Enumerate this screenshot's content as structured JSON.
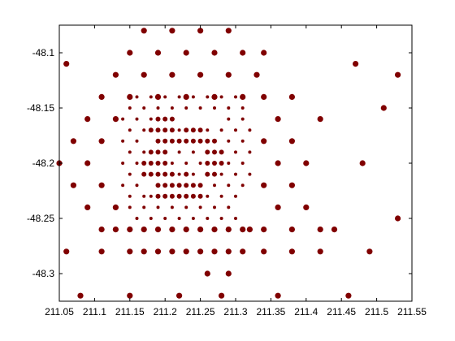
{
  "chart_data": {
    "type": "scatter",
    "title": "",
    "xlabel": "",
    "ylabel": "",
    "xlim": [
      211.05,
      211.55
    ],
    "ylim": [
      -48.325,
      -48.075
    ],
    "xticks": [
      211.05,
      211.1,
      211.15,
      211.2,
      211.25,
      211.3,
      211.35,
      211.4,
      211.45,
      211.5,
      211.55
    ],
    "xtick_labels": [
      "211.05",
      "211.1",
      "211.15",
      "211.2",
      "211.25",
      "211.3",
      "211.35",
      "211.4",
      "211.45",
      "211.5",
      "211.55"
    ],
    "yticks": [
      -48.1,
      -48.15,
      -48.2,
      -48.25,
      -48.3
    ],
    "ytick_labels": [
      "-48.1",
      "-48.15",
      "-48.2",
      "-48.25",
      "-48.3"
    ],
    "grid": false,
    "legend": "none",
    "marker_color": "#800000",
    "series": [
      {
        "points": [
          [
            211.17,
            -48.08
          ],
          [
            211.21,
            -48.08
          ],
          [
            211.25,
            -48.08
          ],
          [
            211.29,
            -48.08
          ],
          [
            211.06,
            -48.11
          ],
          [
            211.15,
            -48.1
          ],
          [
            211.19,
            -48.1
          ],
          [
            211.23,
            -48.1
          ],
          [
            211.27,
            -48.1
          ],
          [
            211.31,
            -48.1
          ],
          [
            211.34,
            -48.1
          ],
          [
            211.47,
            -48.11
          ],
          [
            211.13,
            -48.12
          ],
          [
            211.17,
            -48.12
          ],
          [
            211.21,
            -48.12
          ],
          [
            211.25,
            -48.12
          ],
          [
            211.29,
            -48.12
          ],
          [
            211.33,
            -48.12
          ],
          [
            211.53,
            -48.12
          ],
          [
            211.11,
            -48.14
          ],
          [
            211.15,
            -48.14
          ],
          [
            211.19,
            -48.14
          ],
          [
            211.23,
            -48.14
          ],
          [
            211.27,
            -48.14
          ],
          [
            211.31,
            -48.14
          ],
          [
            211.34,
            -48.14
          ],
          [
            211.38,
            -48.14
          ],
          [
            211.51,
            -48.15
          ],
          [
            211.09,
            -48.16
          ],
          [
            211.13,
            -48.16
          ],
          [
            211.36,
            -48.16
          ],
          [
            211.42,
            -48.16
          ],
          [
            211.07,
            -48.18
          ],
          [
            211.11,
            -48.18
          ],
          [
            211.34,
            -48.18
          ],
          [
            211.38,
            -48.18
          ],
          [
            211.05,
            -48.2
          ],
          [
            211.09,
            -48.2
          ],
          [
            211.36,
            -48.2
          ],
          [
            211.4,
            -48.2
          ],
          [
            211.48,
            -48.2
          ],
          [
            211.07,
            -48.22
          ],
          [
            211.11,
            -48.22
          ],
          [
            211.34,
            -48.22
          ],
          [
            211.38,
            -48.22
          ],
          [
            211.09,
            -48.24
          ],
          [
            211.13,
            -48.24
          ],
          [
            211.36,
            -48.24
          ],
          [
            211.4,
            -48.24
          ],
          [
            211.13,
            -48.26
          ],
          [
            211.17,
            -48.26
          ],
          [
            211.21,
            -48.26
          ],
          [
            211.25,
            -48.26
          ],
          [
            211.29,
            -48.26
          ],
          [
            211.32,
            -48.26
          ],
          [
            211.38,
            -48.26
          ],
          [
            211.44,
            -48.26
          ],
          [
            211.53,
            -48.25
          ],
          [
            211.11,
            -48.26
          ],
          [
            211.15,
            -48.26
          ],
          [
            211.19,
            -48.26
          ],
          [
            211.23,
            -48.26
          ],
          [
            211.27,
            -48.26
          ],
          [
            211.31,
            -48.26
          ],
          [
            211.34,
            -48.26
          ],
          [
            211.42,
            -48.26
          ],
          [
            211.06,
            -48.28
          ],
          [
            211.11,
            -48.28
          ],
          [
            211.15,
            -48.28
          ],
          [
            211.19,
            -48.28
          ],
          [
            211.23,
            -48.28
          ],
          [
            211.27,
            -48.28
          ],
          [
            211.31,
            -48.28
          ],
          [
            211.34,
            -48.28
          ],
          [
            211.38,
            -48.28
          ],
          [
            211.42,
            -48.28
          ],
          [
            211.49,
            -48.28
          ],
          [
            211.17,
            -48.28
          ],
          [
            211.21,
            -48.28
          ],
          [
            211.25,
            -48.28
          ],
          [
            211.29,
            -48.28
          ],
          [
            211.26,
            -48.3
          ],
          [
            211.29,
            -48.3
          ],
          [
            211.08,
            -48.32
          ],
          [
            211.15,
            -48.32
          ],
          [
            211.22,
            -48.32
          ],
          [
            211.28,
            -48.32
          ],
          [
            211.36,
            -48.32
          ],
          [
            211.46,
            -48.32
          ]
        ]
      },
      {
        "points": [
          [
            211.15,
            -48.15
          ],
          [
            211.16,
            -48.14
          ],
          [
            211.17,
            -48.15
          ],
          [
            211.18,
            -48.14
          ],
          [
            211.19,
            -48.15
          ],
          [
            211.2,
            -48.14
          ],
          [
            211.21,
            -48.15
          ],
          [
            211.22,
            -48.14
          ],
          [
            211.23,
            -48.15
          ],
          [
            211.24,
            -48.14
          ],
          [
            211.25,
            -48.15
          ],
          [
            211.26,
            -48.14
          ],
          [
            211.27,
            -48.15
          ],
          [
            211.28,
            -48.14
          ],
          [
            211.29,
            -48.15
          ],
          [
            211.3,
            -48.14
          ],
          [
            211.31,
            -48.15
          ],
          [
            211.14,
            -48.16
          ],
          [
            211.15,
            -48.17
          ],
          [
            211.16,
            -48.16
          ],
          [
            211.17,
            -48.17
          ],
          [
            211.18,
            -48.16
          ],
          [
            211.29,
            -48.16
          ],
          [
            211.3,
            -48.17
          ],
          [
            211.31,
            -48.16
          ],
          [
            211.32,
            -48.17
          ],
          [
            211.14,
            -48.18
          ],
          [
            211.15,
            -48.19
          ],
          [
            211.16,
            -48.18
          ],
          [
            211.17,
            -48.19
          ],
          [
            211.29,
            -48.18
          ],
          [
            211.3,
            -48.19
          ],
          [
            211.31,
            -48.18
          ],
          [
            211.32,
            -48.19
          ],
          [
            211.14,
            -48.2
          ],
          [
            211.15,
            -48.21
          ],
          [
            211.16,
            -48.2
          ],
          [
            211.17,
            -48.21
          ],
          [
            211.29,
            -48.2
          ],
          [
            211.3,
            -48.21
          ],
          [
            211.31,
            -48.2
          ],
          [
            211.32,
            -48.21
          ],
          [
            211.14,
            -48.22
          ],
          [
            211.15,
            -48.23
          ],
          [
            211.16,
            -48.22
          ],
          [
            211.17,
            -48.23
          ],
          [
            211.29,
            -48.22
          ],
          [
            211.3,
            -48.23
          ],
          [
            211.31,
            -48.22
          ],
          [
            211.15,
            -48.24
          ],
          [
            211.16,
            -48.25
          ],
          [
            211.17,
            -48.24
          ],
          [
            211.18,
            -48.25
          ],
          [
            211.19,
            -48.24
          ],
          [
            211.2,
            -48.25
          ],
          [
            211.21,
            -48.24
          ],
          [
            211.22,
            -48.25
          ],
          [
            211.23,
            -48.24
          ],
          [
            211.24,
            -48.25
          ],
          [
            211.25,
            -48.24
          ],
          [
            211.26,
            -48.25
          ],
          [
            211.27,
            -48.24
          ],
          [
            211.28,
            -48.25
          ],
          [
            211.29,
            -48.24
          ],
          [
            211.3,
            -48.25
          ],
          [
            211.18,
            -48.17
          ],
          [
            211.19,
            -48.18
          ],
          [
            211.2,
            -48.17
          ],
          [
            211.21,
            -48.18
          ],
          [
            211.22,
            -48.17
          ],
          [
            211.23,
            -48.18
          ],
          [
            211.24,
            -48.17
          ],
          [
            211.25,
            -48.18
          ],
          [
            211.26,
            -48.17
          ],
          [
            211.27,
            -48.18
          ],
          [
            211.28,
            -48.17
          ],
          [
            211.18,
            -48.19
          ],
          [
            211.19,
            -48.2
          ],
          [
            211.2,
            -48.19
          ],
          [
            211.21,
            -48.2
          ],
          [
            211.22,
            -48.19
          ],
          [
            211.23,
            -48.2
          ],
          [
            211.24,
            -48.19
          ],
          [
            211.25,
            -48.2
          ],
          [
            211.26,
            -48.19
          ],
          [
            211.27,
            -48.2
          ],
          [
            211.28,
            -48.19
          ],
          [
            211.18,
            -48.21
          ],
          [
            211.19,
            -48.22
          ],
          [
            211.2,
            -48.21
          ],
          [
            211.21,
            -48.22
          ],
          [
            211.22,
            -48.21
          ],
          [
            211.23,
            -48.22
          ],
          [
            211.24,
            -48.21
          ],
          [
            211.25,
            -48.22
          ],
          [
            211.26,
            -48.21
          ],
          [
            211.27,
            -48.22
          ],
          [
            211.28,
            -48.21
          ],
          [
            211.18,
            -48.23
          ],
          [
            211.2,
            -48.23
          ],
          [
            211.22,
            -48.23
          ],
          [
            211.24,
            -48.23
          ],
          [
            211.26,
            -48.23
          ],
          [
            211.28,
            -48.23
          ]
        ]
      },
      {
        "points": [
          [
            211.19,
            -48.16
          ],
          [
            211.2,
            -48.16
          ],
          [
            211.21,
            -48.16
          ],
          [
            211.18,
            -48.17
          ],
          [
            211.19,
            -48.17
          ],
          [
            211.2,
            -48.17
          ],
          [
            211.21,
            -48.17
          ],
          [
            211.23,
            -48.17
          ],
          [
            211.24,
            -48.17
          ],
          [
            211.25,
            -48.17
          ],
          [
            211.19,
            -48.18
          ],
          [
            211.2,
            -48.18
          ],
          [
            211.21,
            -48.18
          ],
          [
            211.22,
            -48.18
          ],
          [
            211.23,
            -48.18
          ],
          [
            211.24,
            -48.18
          ],
          [
            211.25,
            -48.18
          ],
          [
            211.26,
            -48.18
          ],
          [
            211.27,
            -48.18
          ],
          [
            211.18,
            -48.19
          ],
          [
            211.19,
            -48.19
          ],
          [
            211.2,
            -48.19
          ],
          [
            211.26,
            -48.19
          ],
          [
            211.27,
            -48.19
          ],
          [
            211.28,
            -48.19
          ],
          [
            211.17,
            -48.2
          ],
          [
            211.18,
            -48.2
          ],
          [
            211.19,
            -48.2
          ],
          [
            211.2,
            -48.2
          ],
          [
            211.26,
            -48.2
          ],
          [
            211.27,
            -48.2
          ],
          [
            211.28,
            -48.2
          ],
          [
            211.17,
            -48.21
          ],
          [
            211.18,
            -48.21
          ],
          [
            211.19,
            -48.21
          ],
          [
            211.2,
            -48.21
          ],
          [
            211.21,
            -48.21
          ],
          [
            211.23,
            -48.21
          ],
          [
            211.26,
            -48.21
          ],
          [
            211.27,
            -48.21
          ],
          [
            211.19,
            -48.22
          ],
          [
            211.2,
            -48.22
          ],
          [
            211.21,
            -48.22
          ],
          [
            211.22,
            -48.22
          ],
          [
            211.23,
            -48.22
          ],
          [
            211.24,
            -48.22
          ],
          [
            211.25,
            -48.22
          ],
          [
            211.19,
            -48.23
          ],
          [
            211.2,
            -48.23
          ],
          [
            211.21,
            -48.23
          ],
          [
            211.22,
            -48.23
          ],
          [
            211.23,
            -48.23
          ],
          [
            211.24,
            -48.23
          ],
          [
            211.25,
            -48.23
          ]
        ]
      }
    ]
  }
}
